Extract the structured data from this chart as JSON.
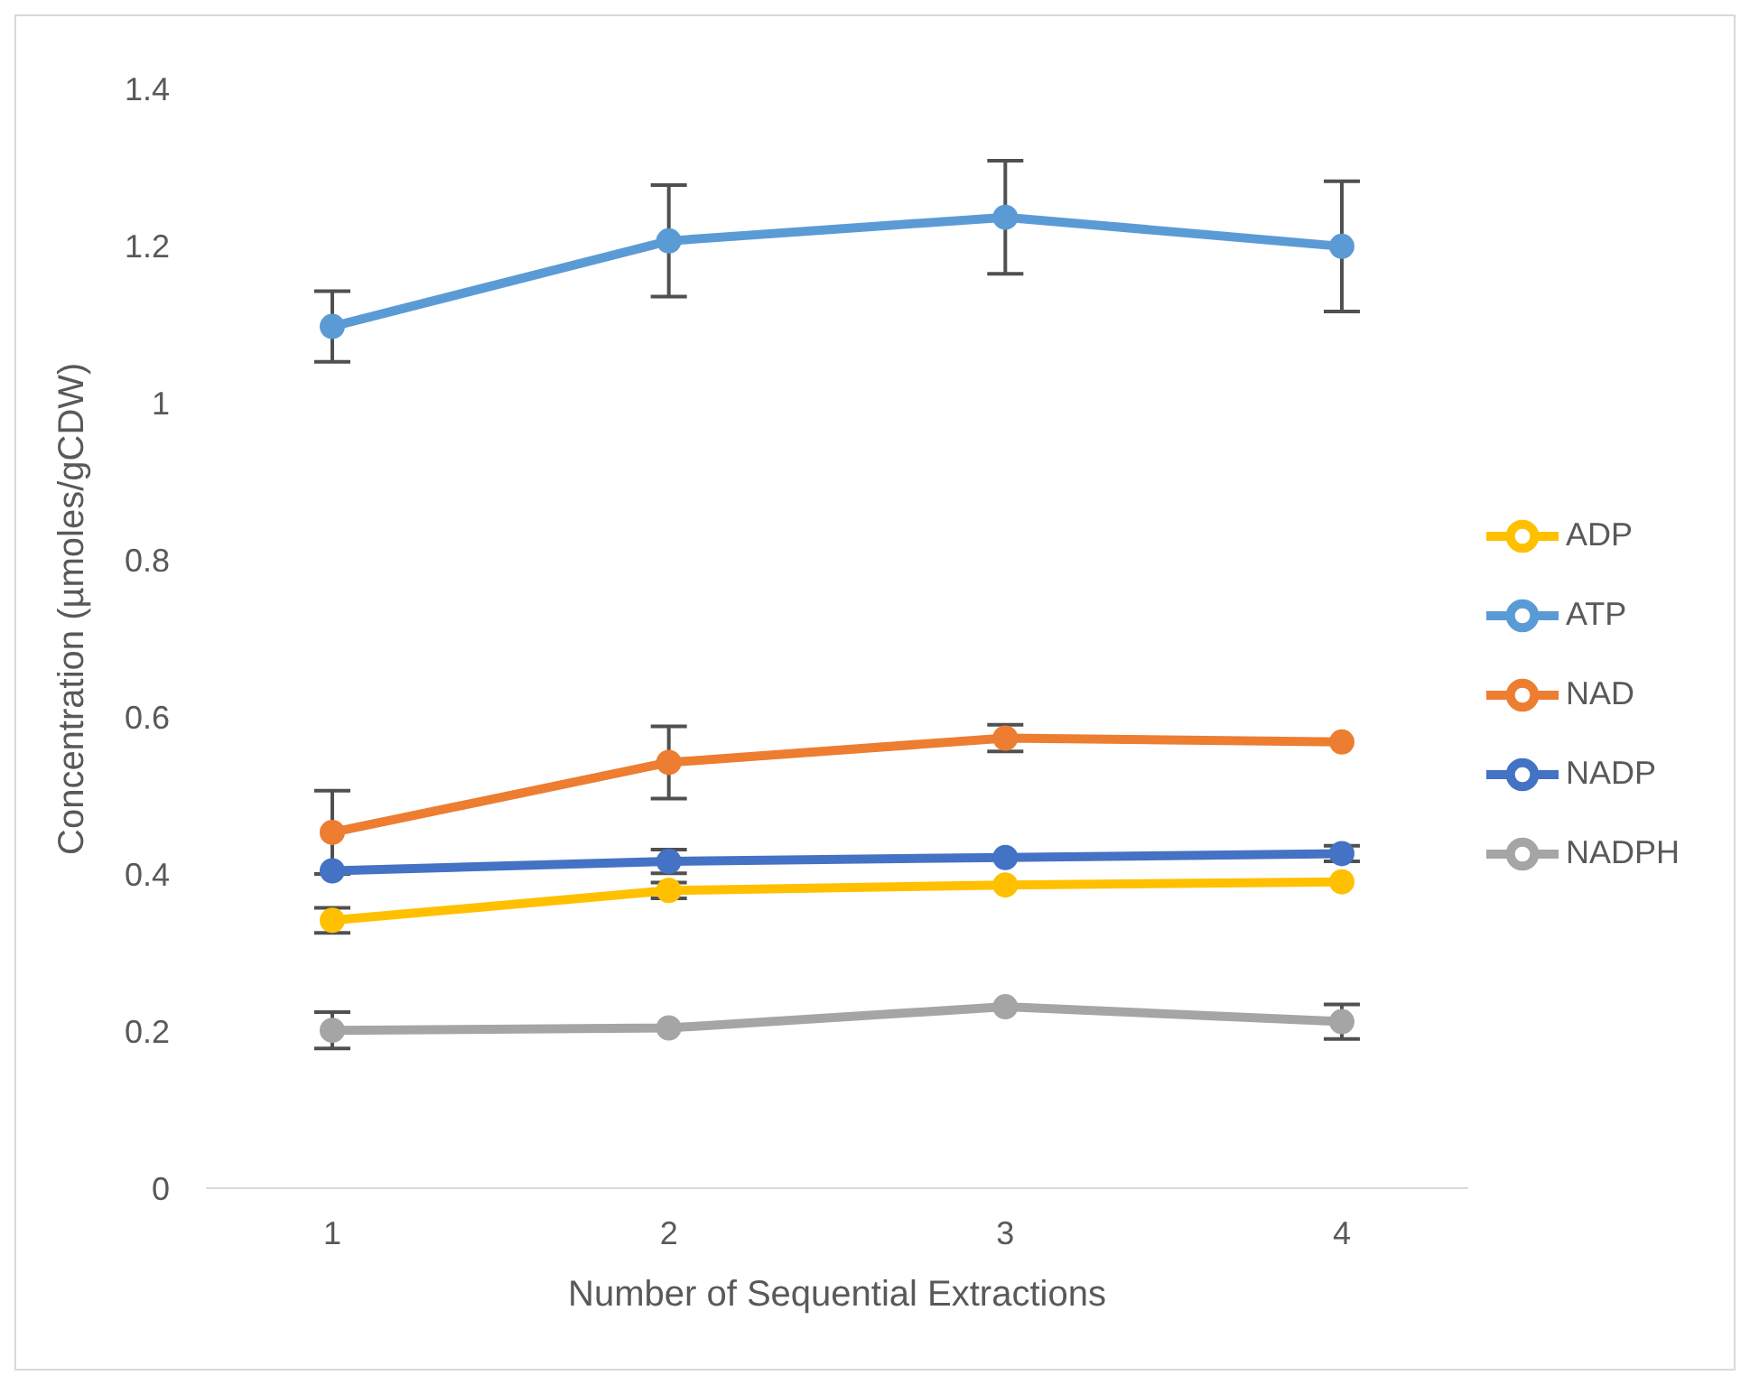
{
  "chart_data": {
    "type": "line",
    "xlabel": "Number of Sequential Extractions",
    "ylabel": "Concentration (µmoles/gCDW)",
    "categories": [
      "1",
      "2",
      "3",
      "4"
    ],
    "series": [
      {
        "name": "NAD",
        "color": "#ed7d31",
        "values": [
          0.453,
          0.542,
          0.573,
          0.568
        ],
        "errors": [
          0.053,
          0.046,
          0.017,
          null
        ]
      },
      {
        "name": "NADP",
        "color": "#4472c4",
        "values": [
          0.404,
          0.416,
          0.421,
          0.426
        ],
        "errors": [
          null,
          0.015,
          null,
          0.01
        ]
      },
      {
        "name": "NADPH",
        "color": "#a5a5a5",
        "values": [
          0.201,
          0.204,
          0.231,
          0.212
        ],
        "errors": [
          0.023,
          null,
          null,
          0.022
        ]
      },
      {
        "name": "ADP",
        "color": "#ffc000",
        "values": [
          0.341,
          0.379,
          0.386,
          0.39
        ],
        "errors": [
          0.016,
          0.01,
          null,
          null
        ]
      },
      {
        "name": "ATP",
        "color": "#5b9bd5",
        "values": [
          1.097,
          1.206,
          1.236,
          1.199
        ],
        "errors": [
          0.045,
          0.071,
          0.072,
          0.083
        ]
      }
    ],
    "ylim": [
      0,
      1.4
    ],
    "yticks": [
      0,
      0.2,
      0.4,
      0.6,
      0.8,
      1,
      1.2,
      1.4
    ],
    "legend": "right",
    "marker": "circle",
    "line_style": "solid",
    "grid": false
  }
}
